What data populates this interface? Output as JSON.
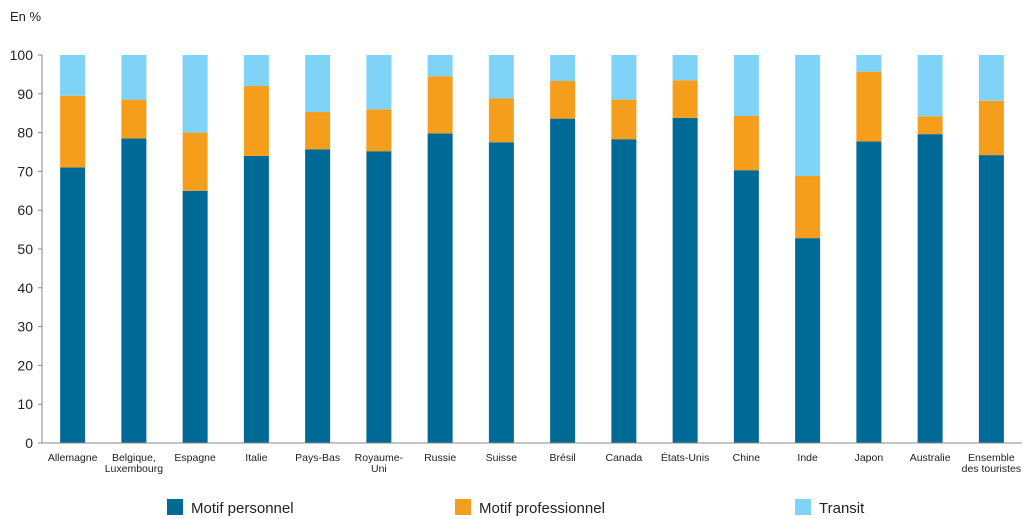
{
  "chart_data": {
    "type": "bar",
    "stacked": true,
    "unit_label": "En %",
    "title": "",
    "xlabel": "",
    "ylabel": "",
    "ylim": [
      0,
      100
    ],
    "yticks": [
      0,
      10,
      20,
      30,
      40,
      50,
      60,
      70,
      80,
      90,
      100
    ],
    "grid": false,
    "legend_position": "bottom",
    "categories": [
      "Allemagne",
      "Belgique, Luxembourg",
      "Espagne",
      "Italie",
      "Pays-Bas",
      "Royaume-Uni",
      "Russie",
      "Suisse",
      "Brésil",
      "Canada",
      "États-Unis",
      "Chine",
      "Inde",
      "Japon",
      "Australie",
      "Ensemble des touristes"
    ],
    "category_label_lines": [
      [
        "Allemagne"
      ],
      [
        "Belgique,",
        "Luxembourg"
      ],
      [
        "Espagne"
      ],
      [
        "Italie"
      ],
      [
        "Pays-Bas"
      ],
      [
        "Royaume-",
        "Uni"
      ],
      [
        "Russie"
      ],
      [
        "Suisse"
      ],
      [
        "Brésil"
      ],
      [
        "Canada"
      ],
      [
        "États-Unis"
      ],
      [
        "Chine"
      ],
      [
        "Inde"
      ],
      [
        "Japon"
      ],
      [
        "Australie"
      ],
      [
        "Ensemble",
        "des touristes"
      ]
    ],
    "series": [
      {
        "name": "Motif personnel",
        "color": "#006a96",
        "values": [
          71,
          78.5,
          65,
          74,
          75.7,
          75.2,
          79.8,
          77.5,
          83.6,
          78.3,
          83.8,
          70.3,
          52.8,
          77.7,
          79.6,
          74.2
        ]
      },
      {
        "name": "Motif professionnel",
        "color": "#f59e1c",
        "values": [
          18.5,
          10,
          15,
          18,
          9.6,
          10.8,
          14.7,
          11.3,
          9.7,
          10.2,
          9.7,
          14,
          16,
          18,
          4.6,
          14
        ]
      },
      {
        "name": "Transit",
        "color": "#7fd3f7",
        "values": [
          10.5,
          11.5,
          20,
          8,
          14.7,
          14,
          5.5,
          11.2,
          6.7,
          11.5,
          6.5,
          15.7,
          31.2,
          4.3,
          15.8,
          11.8
        ]
      }
    ]
  }
}
